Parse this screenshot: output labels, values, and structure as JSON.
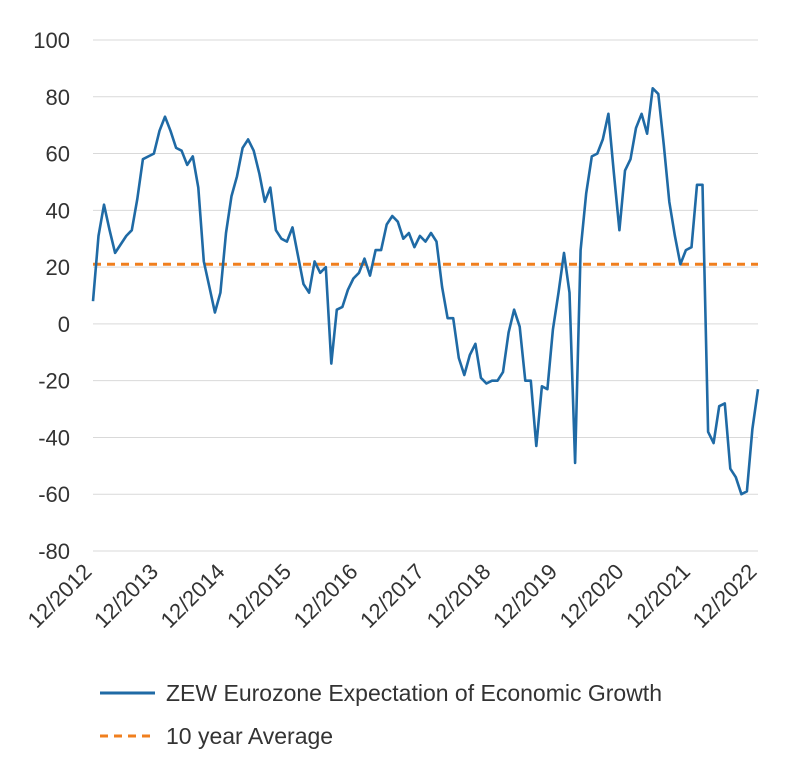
{
  "chart_data": {
    "type": "line",
    "ylim": [
      -80,
      100
    ],
    "yticks": [
      100,
      80,
      60,
      40,
      20,
      0,
      -20,
      -40,
      -60,
      -80
    ],
    "ytick_labels": [
      "100",
      "80",
      "60",
      "40",
      "20",
      "0",
      "-20",
      "-40",
      "-60",
      "-80"
    ],
    "xlim": [
      2012.917,
      2022.917
    ],
    "xticks": [
      {
        "label": "12/2012",
        "x": 2012.917
      },
      {
        "label": "12/2013",
        "x": 2013.917
      },
      {
        "label": "12/2014",
        "x": 2014.917
      },
      {
        "label": "12/2015",
        "x": 2015.917
      },
      {
        "label": "12/2016",
        "x": 2016.917
      },
      {
        "label": "12/2017",
        "x": 2017.917
      },
      {
        "label": "12/2018",
        "x": 2018.917
      },
      {
        "label": "12/2019",
        "x": 2019.917
      },
      {
        "label": "12/2020",
        "x": 2020.917
      },
      {
        "label": "12/2021",
        "x": 2021.917
      },
      {
        "label": "12/2022",
        "x": 2022.917
      }
    ],
    "grid": "horizontal",
    "legend_position": "bottom",
    "series": [
      {
        "name": "ZEW Eurozone Expectation of Economic Growth",
        "color": "#1f6aa5",
        "style": "solid",
        "x": [
          2012.917,
          2013.0,
          2013.083,
          2013.167,
          2013.25,
          2013.333,
          2013.417,
          2013.5,
          2013.583,
          2013.667,
          2013.75,
          2013.833,
          2013.917,
          2014.0,
          2014.083,
          2014.167,
          2014.25,
          2014.333,
          2014.417,
          2014.5,
          2014.583,
          2014.667,
          2014.75,
          2014.833,
          2014.917,
          2015.0,
          2015.083,
          2015.167,
          2015.25,
          2015.333,
          2015.417,
          2015.5,
          2015.583,
          2015.667,
          2015.75,
          2015.833,
          2015.917,
          2016.0,
          2016.083,
          2016.167,
          2016.25,
          2016.333,
          2016.417,
          2016.5,
          2016.583,
          2016.667,
          2016.75,
          2016.833,
          2016.917,
          2017.0,
          2017.083,
          2017.167,
          2017.25,
          2017.333,
          2017.417,
          2017.5,
          2017.583,
          2017.667,
          2017.75,
          2017.833,
          2017.917,
          2018.0,
          2018.083,
          2018.167,
          2018.25,
          2018.333,
          2018.417,
          2018.5,
          2018.583,
          2018.667,
          2018.75,
          2018.833,
          2018.917,
          2019.0,
          2019.083,
          2019.167,
          2019.25,
          2019.333,
          2019.417,
          2019.5,
          2019.583,
          2019.667,
          2019.75,
          2019.833,
          2019.917,
          2020.0,
          2020.083,
          2020.167,
          2020.25,
          2020.333,
          2020.417,
          2020.5,
          2020.583,
          2020.667,
          2020.75,
          2020.833,
          2020.917,
          2021.0,
          2021.083,
          2021.167,
          2021.25,
          2021.333,
          2021.417,
          2021.5,
          2021.583,
          2021.667,
          2021.75,
          2021.833,
          2021.917,
          2022.0,
          2022.083,
          2022.167,
          2022.25,
          2022.333,
          2022.417,
          2022.5,
          2022.583,
          2022.667,
          2022.75,
          2022.833,
          2022.917
        ],
        "values": [
          8,
          31,
          42,
          33,
          25,
          28,
          31,
          33,
          44,
          58,
          59,
          60,
          68,
          73,
          68,
          62,
          61,
          56,
          59,
          48,
          22,
          13,
          4,
          11,
          32,
          45,
          52,
          62,
          65,
          61,
          53,
          43,
          48,
          33,
          30,
          29,
          34,
          24,
          14,
          11,
          22,
          18,
          20,
          -14,
          5,
          6,
          12,
          16,
          18,
          23,
          17,
          26,
          26,
          35,
          38,
          36,
          30,
          32,
          27,
          31,
          29,
          32,
          29,
          13,
          2,
          2,
          -12,
          -18,
          -11,
          -7,
          -19,
          -21,
          -20,
          -20,
          -17,
          -3,
          5,
          -1,
          -20,
          -20,
          -43,
          -22,
          -23,
          -2,
          11,
          25,
          11,
          -49,
          26,
          46,
          59,
          60,
          65,
          74,
          53,
          33,
          54,
          58,
          69,
          74,
          67,
          83,
          81,
          63,
          43,
          31,
          21,
          26,
          27,
          49,
          49,
          -38,
          -42,
          -29,
          -28,
          -51,
          -54,
          -60,
          -59,
          -37,
          -23
        ]
      },
      {
        "name": "10 year Average",
        "color": "#f07f1e",
        "style": "dashed",
        "x": [
          2012.917,
          2022.917
        ],
        "values": [
          21,
          21
        ]
      }
    ]
  }
}
